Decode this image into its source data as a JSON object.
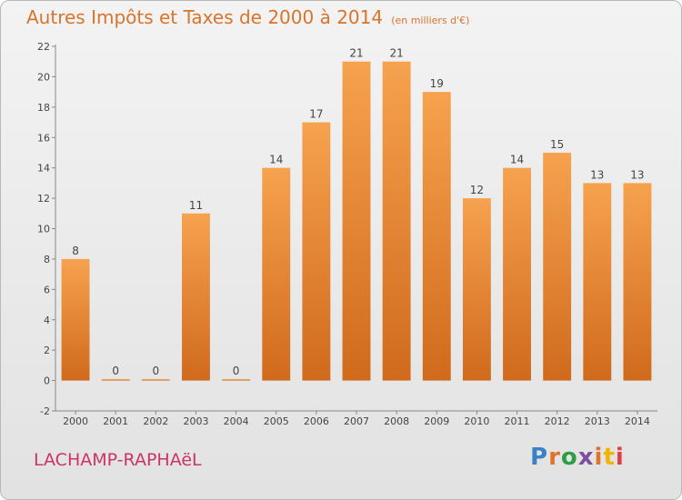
{
  "header": {
    "title": "Autres Impôts et Taxes de 2000 à 2014",
    "unit": "(en milliers d'€)"
  },
  "footer": {
    "town": "LACHAMP-RAPHAëL",
    "logo": "Proxiti"
  },
  "colors": {
    "bar_light": "#f6a24e",
    "bar_dark": "#d06a1c",
    "title": "#d8742b",
    "town": "#cc3368",
    "logo_letters": [
      "#3b82c4",
      "#e0742a",
      "#2e9e44",
      "#7c4ea1",
      "#e0742a",
      "#f0b400",
      "#e04040"
    ]
  },
  "chart_data": {
    "type": "bar",
    "title": "Autres Impôts et Taxes de 2000 à 2014",
    "unit": "(en milliers d'€)",
    "categories": [
      "2000",
      "2001",
      "2002",
      "2003",
      "2004",
      "2005",
      "2006",
      "2007",
      "2008",
      "2009",
      "2010",
      "2011",
      "2012",
      "2013",
      "2014"
    ],
    "values": [
      8,
      0,
      0,
      11,
      0,
      14,
      17,
      21,
      21,
      19,
      12,
      14,
      15,
      13,
      13
    ],
    "ylim": [
      -2,
      22
    ],
    "yticks": [
      -2,
      0,
      2,
      4,
      6,
      8,
      10,
      12,
      14,
      16,
      18,
      20,
      22
    ],
    "grid": false,
    "legend": "none"
  }
}
